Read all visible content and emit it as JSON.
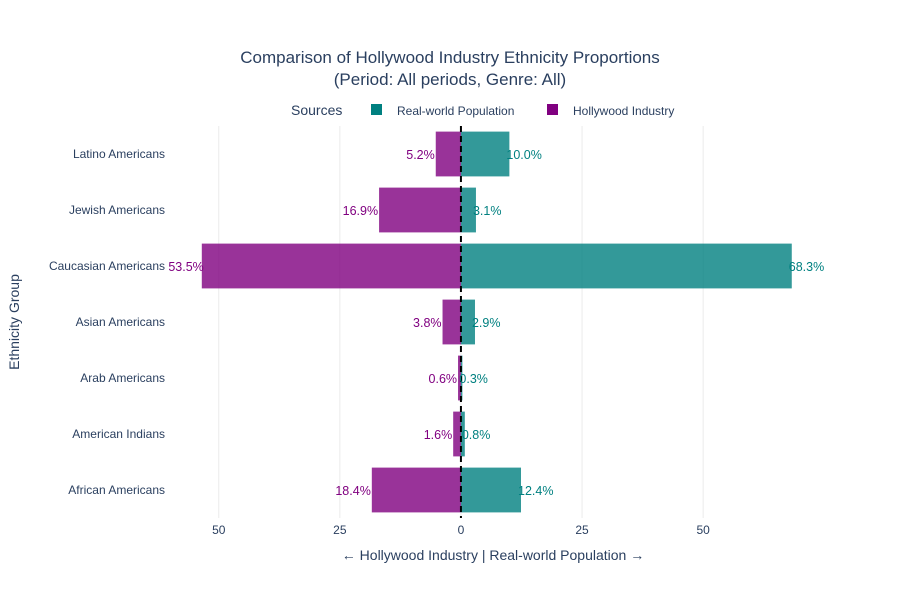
{
  "chart_data": {
    "type": "bar",
    "orientation": "horizontal",
    "title_line1": "Comparison of Hollywood Industry Ethnicity Proportions",
    "title_line2": "(Period: All periods, Genre: All)",
    "xlabel": "← Hollywood Industry | Real-world Population →",
    "ylabel": "Ethnicity Group",
    "legend_title": "Sources",
    "legend_position": "top",
    "categories": [
      "Latino Americans",
      "Jewish Americans",
      "Caucasian Americans",
      "Asian Americans",
      "Arab Americans",
      "American Indians",
      "African Americans"
    ],
    "series": [
      {
        "name": "Real-world Population",
        "color": "#008080",
        "direction": "right",
        "values": [
          10.0,
          3.1,
          68.3,
          2.9,
          0.3,
          0.8,
          12.4
        ],
        "labels": [
          "10.0%",
          "3.1%",
          "68.3%",
          "2.9%",
          "0.3%",
          "0.8%",
          "12.4%"
        ]
      },
      {
        "name": "Hollywood Industry",
        "color": "#800080",
        "direction": "left",
        "values": [
          5.2,
          16.9,
          53.5,
          3.8,
          0.6,
          1.6,
          18.4
        ],
        "labels": [
          "5.2%",
          "16.9%",
          "53.5%",
          "3.8%",
          "0.6%",
          "1.6%",
          "18.4%"
        ]
      }
    ],
    "xlim": [
      -58,
      70
    ],
    "xticks": [
      {
        "value": -50,
        "label": "50"
      },
      {
        "value": -25,
        "label": "25"
      },
      {
        "value": 0,
        "label": "0"
      },
      {
        "value": 25,
        "label": "25"
      },
      {
        "value": 50,
        "label": "50"
      }
    ],
    "zero_line": "dashed black",
    "grid": true
  }
}
